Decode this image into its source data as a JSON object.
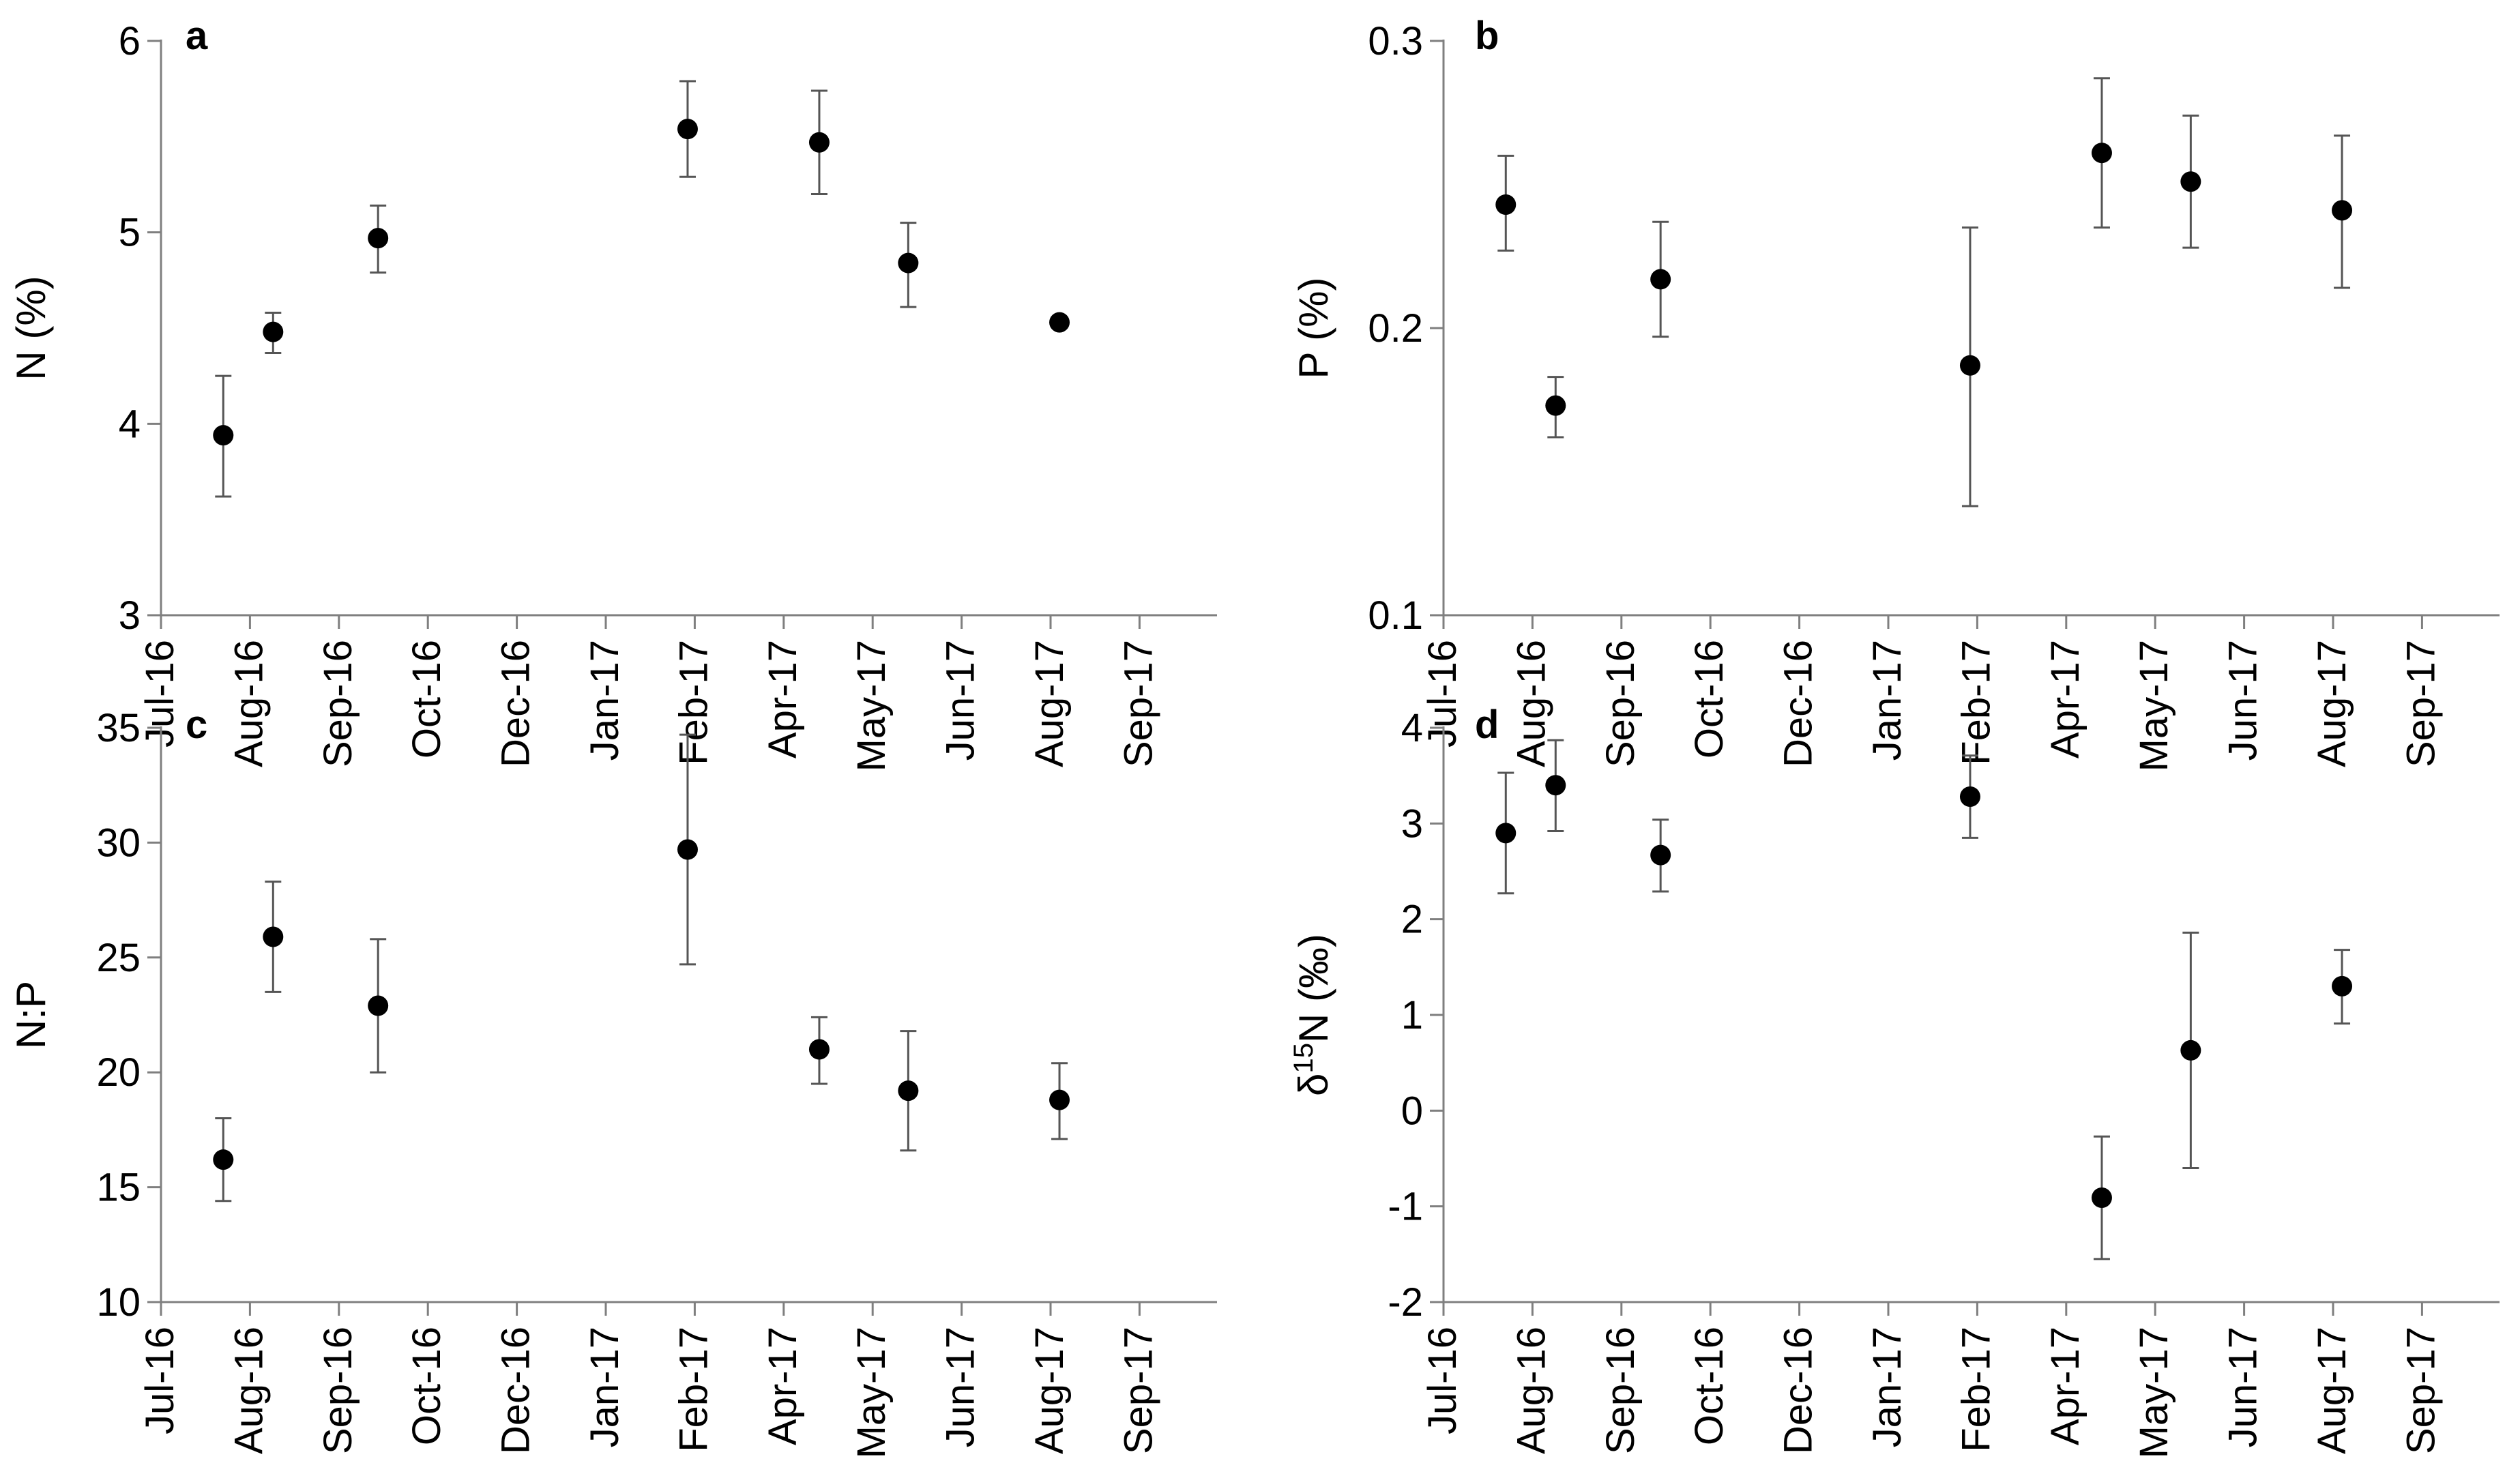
{
  "chart_data": [
    {
      "id": "a",
      "panel_label": "a",
      "type": "scatter",
      "title": "",
      "ylabel": "N (%)",
      "ylabel_parts": [
        "N (%)"
      ],
      "ylim": [
        3,
        6
      ],
      "yticks": [
        3,
        4,
        5,
        6
      ],
      "ytick_labels": [
        "3",
        "4",
        "5",
        "6"
      ],
      "xticks": [
        "Jul-16",
        "Aug-16",
        "Sep-16",
        "Oct-16",
        "Dec-16",
        "Jan-17",
        "Feb-17",
        "Apr-17",
        "May-17",
        "Jun-17",
        "Aug-17",
        "Sep-17"
      ],
      "points": [
        {
          "x": 0.7,
          "y": 3.94,
          "lo": 3.62,
          "hi": 4.25
        },
        {
          "x": 1.26,
          "y": 4.48,
          "lo": 4.37,
          "hi": 4.58
        },
        {
          "x": 2.44,
          "y": 4.97,
          "lo": 4.79,
          "hi": 5.14
        },
        {
          "x": 5.92,
          "y": 5.54,
          "lo": 5.29,
          "hi": 5.79
        },
        {
          "x": 7.4,
          "y": 5.47,
          "lo": 5.2,
          "hi": 5.74
        },
        {
          "x": 8.4,
          "y": 4.84,
          "lo": 4.61,
          "hi": 5.05
        },
        {
          "x": 10.1,
          "y": 4.53,
          "lo": 4.53,
          "hi": 4.53
        }
      ]
    },
    {
      "id": "b",
      "panel_label": "b",
      "type": "scatter",
      "title": "",
      "ylabel": "P (%)",
      "ylabel_parts": [
        "P (%)"
      ],
      "ylim": [
        0.1,
        0.3
      ],
      "yticks": [
        0.1,
        0.2,
        0.3
      ],
      "ytick_labels": [
        "0.1",
        "0.2",
        "0.3"
      ],
      "xticks": [
        "Jul-16",
        "Aug-16",
        "Sep-16",
        "Oct-16",
        "Dec-16",
        "Jan-17",
        "Feb-17",
        "Apr-17",
        "May-17",
        "Jun-17",
        "Aug-17",
        "Sep-17"
      ],
      "points": [
        {
          "x": 0.7,
          "y": 0.243,
          "lo": 0.227,
          "hi": 0.26
        },
        {
          "x": 1.26,
          "y": 0.173,
          "lo": 0.162,
          "hi": 0.183
        },
        {
          "x": 2.44,
          "y": 0.217,
          "lo": 0.197,
          "hi": 0.237
        },
        {
          "x": 5.92,
          "y": 0.187,
          "lo": 0.138,
          "hi": 0.235
        },
        {
          "x": 7.4,
          "y": 0.261,
          "lo": 0.235,
          "hi": 0.287
        },
        {
          "x": 8.4,
          "y": 0.251,
          "lo": 0.228,
          "hi": 0.274
        },
        {
          "x": 10.1,
          "y": 0.241,
          "lo": 0.214,
          "hi": 0.267
        }
      ]
    },
    {
      "id": "c",
      "panel_label": "c",
      "type": "scatter",
      "title": "",
      "ylabel": "N:P",
      "ylabel_parts": [
        "N:P"
      ],
      "ylim": [
        10,
        35
      ],
      "yticks": [
        10,
        15,
        20,
        25,
        30,
        35
      ],
      "ytick_labels": [
        "10",
        "15",
        "20",
        "25",
        "30",
        "35"
      ],
      "xticks": [
        "Jul-16",
        "Aug-16",
        "Sep-16",
        "Oct-16",
        "Dec-16",
        "Jan-17",
        "Feb-17",
        "Apr-17",
        "May-17",
        "Jun-17",
        "Aug-17",
        "Sep-17"
      ],
      "points": [
        {
          "x": 0.7,
          "y": 16.2,
          "lo": 14.4,
          "hi": 18.0
        },
        {
          "x": 1.26,
          "y": 25.9,
          "lo": 23.5,
          "hi": 28.3
        },
        {
          "x": 2.44,
          "y": 22.9,
          "lo": 20.0,
          "hi": 25.8
        },
        {
          "x": 5.92,
          "y": 29.7,
          "lo": 24.7,
          "hi": 34.7
        },
        {
          "x": 7.4,
          "y": 21.0,
          "lo": 19.5,
          "hi": 22.4
        },
        {
          "x": 8.4,
          "y": 19.2,
          "lo": 16.6,
          "hi": 21.8
        },
        {
          "x": 10.1,
          "y": 18.8,
          "lo": 17.1,
          "hi": 20.4
        }
      ]
    },
    {
      "id": "d",
      "panel_label": "d",
      "type": "scatter",
      "title": "",
      "ylabel": "δ15N (‰)",
      "ylabel_parts": [
        "δ",
        "15",
        "N (‰)"
      ],
      "ylim": [
        -2,
        4
      ],
      "yticks": [
        -2,
        -1,
        0,
        1,
        2,
        3,
        4
      ],
      "ytick_labels": [
        "-2",
        "-1",
        "0",
        "1",
        "2",
        "3",
        "4"
      ],
      "xticks": [
        "Jul-16",
        "Aug-16",
        "Sep-16",
        "Oct-16",
        "Dec-16",
        "Jan-17",
        "Feb-17",
        "Apr-17",
        "May-17",
        "Jun-17",
        "Aug-17",
        "Sep-17"
      ],
      "points": [
        {
          "x": 0.7,
          "y": 2.9,
          "lo": 2.27,
          "hi": 3.53
        },
        {
          "x": 1.26,
          "y": 3.4,
          "lo": 2.92,
          "hi": 3.87
        },
        {
          "x": 2.44,
          "y": 2.67,
          "lo": 2.29,
          "hi": 3.04
        },
        {
          "x": 5.92,
          "y": 3.28,
          "lo": 2.85,
          "hi": 3.71
        },
        {
          "x": 7.4,
          "y": -0.91,
          "lo": -1.55,
          "hi": -0.27
        },
        {
          "x": 8.4,
          "y": 0.63,
          "lo": -0.6,
          "hi": 1.86
        },
        {
          "x": 10.1,
          "y": 1.3,
          "lo": 0.91,
          "hi": 1.68
        }
      ]
    }
  ]
}
